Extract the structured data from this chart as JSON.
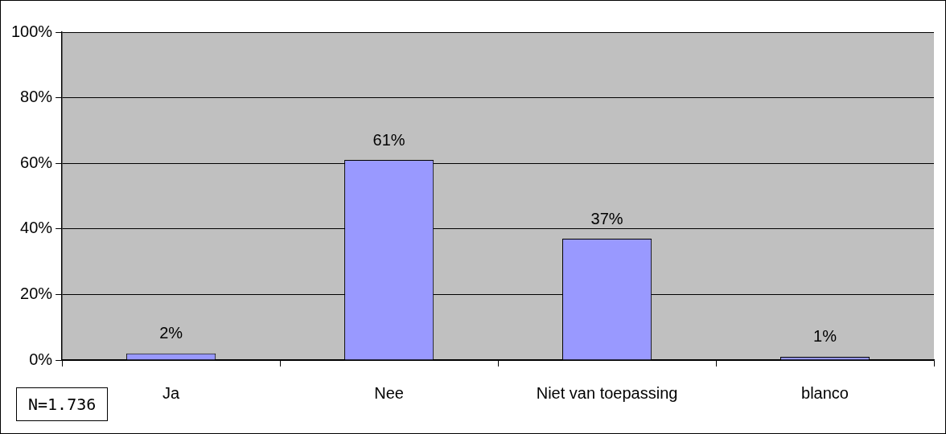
{
  "chart_data": {
    "type": "bar",
    "categories": [
      "Ja",
      "Nee",
      "Niet van toepassing",
      "blanco"
    ],
    "values": [
      2,
      61,
      37,
      1
    ],
    "color": "#9999ff",
    "value_labels": [
      "2%",
      "61%",
      "37%",
      "1%"
    ],
    "ylim": [
      0,
      100
    ],
    "yticks": [
      {
        "value": 0,
        "label": "0%"
      },
      {
        "value": 20,
        "label": "20%"
      },
      {
        "value": 40,
        "label": "40%"
      },
      {
        "value": 60,
        "label": "60%"
      },
      {
        "value": 80,
        "label": "80%"
      },
      {
        "value": 100,
        "label": "100%"
      }
    ],
    "grid": "y",
    "legend": false,
    "annotations": [
      "N=1.736"
    ]
  }
}
